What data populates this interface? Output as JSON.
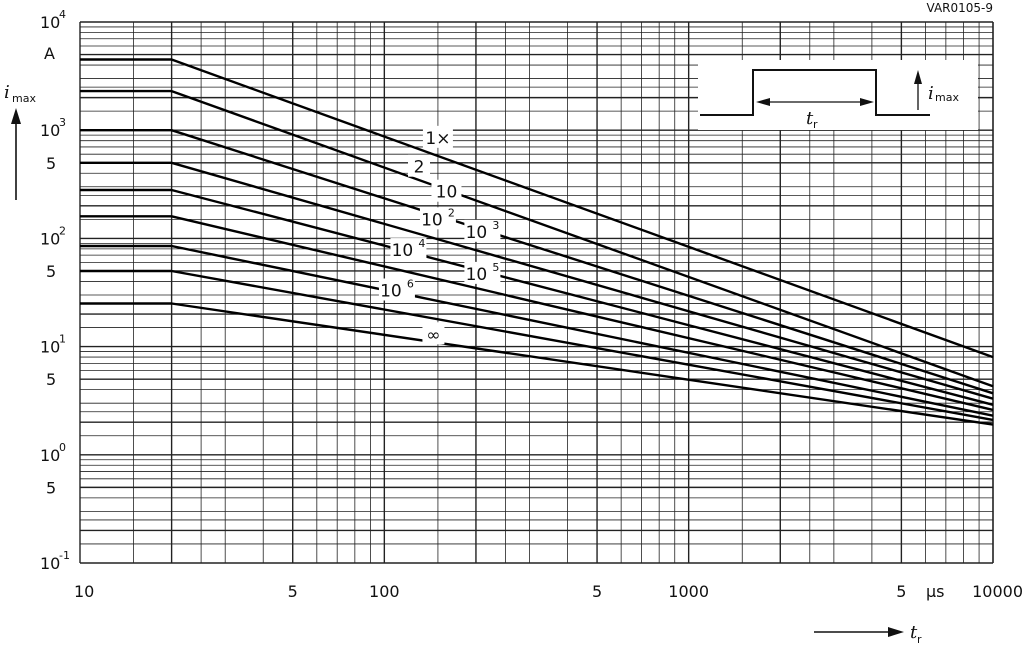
{
  "figure_code": "VAR0105-9",
  "chart_data": {
    "type": "line",
    "xscale": "log",
    "yscale": "log",
    "xlim": [
      10,
      10000
    ],
    "ylim": [
      0.1,
      10000
    ],
    "grid": true,
    "x_tick_labels": [
      {
        "v": 10,
        "t": "10"
      },
      {
        "v": 50,
        "t": "5"
      },
      {
        "v": 100,
        "t": "100"
      },
      {
        "v": 500,
        "t": "5"
      },
      {
        "v": 1000,
        "t": "1000"
      },
      {
        "v": 5000,
        "t": "5"
      },
      {
        "v": 10000,
        "t": "10000"
      }
    ],
    "x_unit": "µs",
    "y_tick_labels": [
      {
        "v": 10000,
        "b": "10",
        "e": "4"
      },
      {
        "v": 1000,
        "b": "10",
        "e": "3"
      },
      {
        "v": 500,
        "b": "5",
        "e": ""
      },
      {
        "v": 100,
        "b": "10",
        "e": "2"
      },
      {
        "v": 50,
        "b": "5",
        "e": ""
      },
      {
        "v": 10,
        "b": "10",
        "e": "1"
      },
      {
        "v": 5,
        "b": "5",
        "e": ""
      },
      {
        "v": 1,
        "b": "10",
        "e": "0"
      },
      {
        "v": 0.5,
        "b": "5",
        "e": ""
      },
      {
        "v": 0.1,
        "b": "10",
        "e": "-1"
      }
    ],
    "y_unit": "A",
    "ylabel": {
      "main": "i",
      "sub": "max"
    },
    "xlabel": {
      "main": "t",
      "sub": "r"
    },
    "series": [
      {
        "name": "1×",
        "label_main": "1×",
        "label_sup": "",
        "x": [
          10,
          20,
          10000
        ],
        "y": [
          4500,
          4500,
          8
        ]
      },
      {
        "name": "2",
        "label_main": "2",
        "label_sup": "",
        "x": [
          10,
          20,
          10000
        ],
        "y": [
          2300,
          2300,
          4.3
        ]
      },
      {
        "name": "10",
        "label_main": "10",
        "label_sup": "",
        "x": [
          10,
          20,
          10000
        ],
        "y": [
          1000,
          1000,
          3.7
        ]
      },
      {
        "name": "10²",
        "label_main": "10",
        "label_sup": "2",
        "x": [
          10,
          20,
          10000
        ],
        "y": [
          500,
          500,
          3.3
        ]
      },
      {
        "name": "10³",
        "label_main": "10",
        "label_sup": "3",
        "x": [
          10,
          20,
          10000
        ],
        "y": [
          280,
          280,
          2.9
        ]
      },
      {
        "name": "10⁴",
        "label_main": "10",
        "label_sup": "4",
        "x": [
          10,
          20,
          10000
        ],
        "y": [
          160,
          160,
          2.6
        ]
      },
      {
        "name": "10⁵",
        "label_main": "10",
        "label_sup": "5",
        "x": [
          10,
          20,
          10000
        ],
        "y": [
          85,
          85,
          2.3
        ]
      },
      {
        "name": "10⁶",
        "label_main": "10",
        "label_sup": "6",
        "x": [
          10,
          20,
          10000
        ],
        "y": [
          50,
          50,
          2.1
        ]
      },
      {
        "name": "∞",
        "label_main": "∞",
        "label_sup": "",
        "x": [
          10,
          20,
          10000
        ],
        "y": [
          25,
          25,
          1.9
        ]
      }
    ],
    "series_label_positions": [
      {
        "x": 150,
        "y": 850
      },
      {
        "x": 130,
        "y": 460
      },
      {
        "x": 160,
        "y": 270
      },
      {
        "x": 150,
        "y": 150
      },
      {
        "x": 210,
        "y": 115
      },
      {
        "x": 120,
        "y": 78
      },
      {
        "x": 210,
        "y": 47
      },
      {
        "x": 110,
        "y": 33
      },
      {
        "x": 145,
        "y": 13
      }
    ],
    "inset": {
      "ylabel_main": "i",
      "ylabel_sub": "max",
      "xlabel_main": "t",
      "xlabel_sub": "r"
    }
  }
}
